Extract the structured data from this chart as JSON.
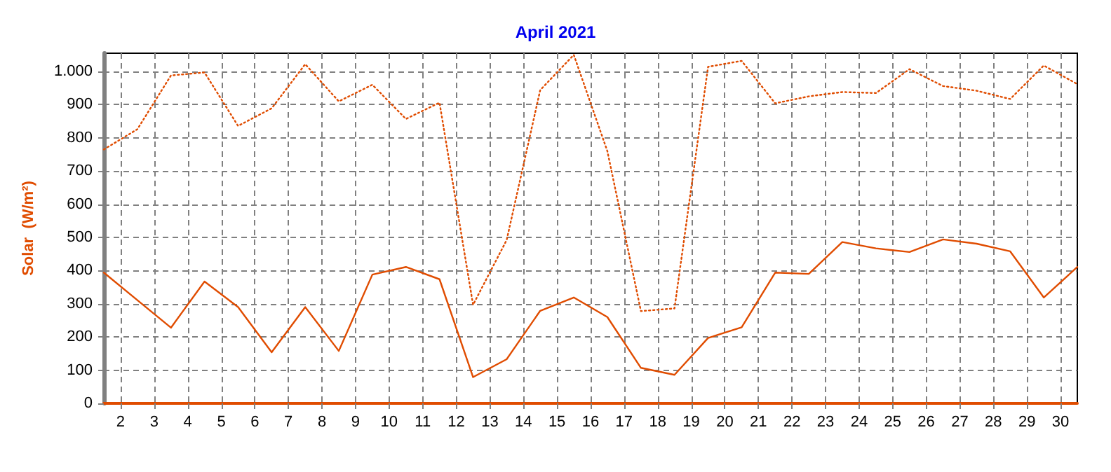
{
  "chart_data": {
    "type": "line",
    "title": "April 2021",
    "ylabel": "Solar  (W/m²)",
    "x": [
      1.5,
      2.5,
      3.5,
      4.5,
      5.5,
      6.5,
      7.5,
      8.5,
      9.5,
      10.5,
      11.5,
      12.5,
      13.5,
      14.5,
      15.5,
      16.5,
      17.5,
      18.5,
      19.5,
      20.5,
      21.5,
      22.5,
      23.5,
      24.5,
      25.5,
      26.5,
      27.5,
      28.5,
      29.5,
      30.5
    ],
    "series": [
      {
        "color": "#e04c00",
        "line_style": "dotted",
        "values": [
          765,
          826,
          988,
          997,
          836,
          889,
          1022,
          910,
          960,
          857,
          906,
          297,
          492,
          944,
          1050,
          760,
          278,
          286,
          1014,
          1032,
          904,
          925,
          938,
          935,
          1007,
          956,
          942,
          917,
          1018,
          962
        ]
      },
      {
        "color": "#e04c00",
        "line_style": "solid",
        "values": [
          394,
          311,
          228,
          367,
          290,
          154,
          290,
          158,
          388,
          411,
          374,
          79,
          133,
          279,
          319,
          260,
          107,
          86,
          197,
          229,
          394,
          390,
          486,
          467,
          456,
          494,
          481,
          458,
          319,
          411
        ]
      }
    ],
    "xlim": [
      1.5,
      30.5
    ],
    "xticks": [
      2,
      3,
      4,
      5,
      6,
      7,
      8,
      9,
      10,
      11,
      12,
      13,
      14,
      15,
      16,
      17,
      18,
      19,
      20,
      21,
      22,
      23,
      24,
      25,
      26,
      27,
      28,
      29,
      30
    ],
    "ylim": [
      0,
      1055
    ],
    "yticks": [
      0,
      100,
      200,
      300,
      400,
      500,
      600,
      700,
      800,
      900,
      {
        "value": 1000,
        "label": "1.000"
      }
    ],
    "grid": true,
    "marker": "none"
  }
}
